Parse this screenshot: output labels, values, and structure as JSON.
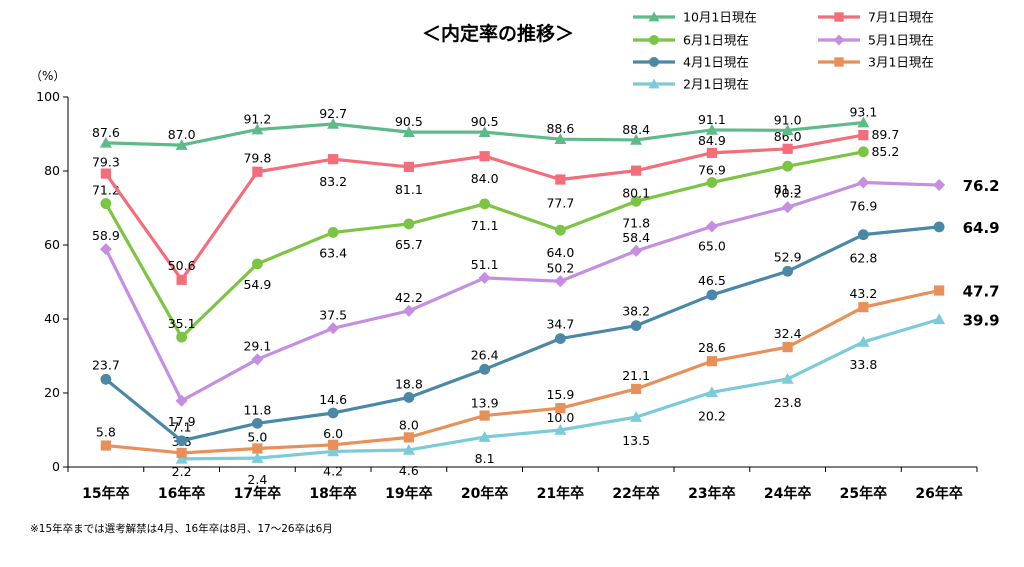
{
  "chart_data": {
    "type": "line",
    "title": "＜内定率の推移＞",
    "ylabel": "（%）",
    "ylim": [
      0,
      100
    ],
    "yticks": [
      0,
      20,
      40,
      60,
      80,
      100
    ],
    "categories": [
      "15年卒",
      "16年卒",
      "17年卒",
      "18年卒",
      "19年卒",
      "20年卒",
      "21年卒",
      "22年卒",
      "23年卒",
      "24年卒",
      "25年卒",
      "26年卒"
    ],
    "grid": false,
    "legend_position": "top-right",
    "footnote": "※15年卒までは選考解禁は4月、16年卒は8月、17〜26卒は6月",
    "series": [
      {
        "name": "10月1日現在",
        "color": "#5fba8a",
        "marker": "triangle",
        "values": [
          87.6,
          87.0,
          91.2,
          92.7,
          90.5,
          90.5,
          88.6,
          88.4,
          91.1,
          91.0,
          93.1,
          null
        ],
        "labels": [
          "87.6",
          "87.0",
          "91.2",
          "92.7",
          "90.5",
          "90.5",
          "88.6",
          "88.4",
          "91.1",
          "91.0",
          "93.1",
          ""
        ]
      },
      {
        "name": "7月1日現在",
        "color": "#f36d7a",
        "marker": "square",
        "values": [
          79.3,
          50.6,
          79.8,
          83.2,
          81.1,
          84.0,
          77.7,
          80.1,
          84.9,
          86.0,
          89.7,
          null
        ],
        "labels": [
          "79.3",
          "50.6",
          "79.8",
          "83.2",
          "81.1",
          "84.0",
          "77.7",
          "80.1",
          "84.9",
          "86.0",
          "89.7",
          ""
        ]
      },
      {
        "name": "6月1日現在",
        "color": "#7cc444",
        "marker": "circle",
        "values": [
          71.2,
          35.1,
          54.9,
          63.4,
          65.7,
          71.1,
          64.0,
          71.8,
          76.9,
          81.3,
          85.2,
          null
        ],
        "labels": [
          "71.2",
          "35.1",
          "54.9",
          "63.4",
          "65.7",
          "71.1",
          "64.0",
          "71.8",
          "76.9",
          "81.3",
          "85.2",
          ""
        ]
      },
      {
        "name": "5月1日現在",
        "color": "#c58ee0",
        "marker": "diamond",
        "values": [
          58.9,
          17.9,
          29.1,
          37.5,
          42.2,
          51.1,
          50.2,
          58.4,
          65.0,
          70.2,
          76.9,
          76.2
        ],
        "labels": [
          "58.9",
          "17.9",
          "29.1",
          "37.5",
          "42.2",
          "51.1",
          "50.2",
          "58.4",
          "65.0",
          "70.2",
          "76.9",
          "76.2"
        ]
      },
      {
        "name": "4月1日現在",
        "color": "#4a88a6",
        "marker": "circle",
        "values": [
          23.7,
          7.1,
          11.8,
          14.6,
          18.8,
          26.4,
          34.7,
          38.2,
          46.5,
          52.9,
          62.8,
          64.9
        ],
        "labels": [
          "23.7",
          "7.1",
          "11.8",
          "14.6",
          "18.8",
          "26.4",
          "34.7",
          "38.2",
          "46.5",
          "52.9",
          "62.8",
          "64.9"
        ]
      },
      {
        "name": "3月1日現在",
        "color": "#e8905a",
        "marker": "square",
        "values": [
          5.8,
          3.8,
          5.0,
          6.0,
          8.0,
          13.9,
          15.9,
          21.1,
          28.6,
          32.4,
          43.2,
          47.7
        ],
        "labels": [
          "5.8",
          "3.8",
          "5.0",
          "6.0",
          "8.0",
          "13.9",
          "15.9",
          "21.1",
          "28.6",
          "32.4",
          "43.2",
          "47.7"
        ]
      },
      {
        "name": "2月1日現在",
        "color": "#7ccbd8",
        "marker": "triangle",
        "values": [
          null,
          2.2,
          2.4,
          4.2,
          4.6,
          8.1,
          10.0,
          13.5,
          20.2,
          23.8,
          33.8,
          39.9
        ],
        "labels": [
          "",
          "2.2",
          "2.4",
          "4.2",
          "4.6",
          "8.1",
          "10.0",
          "13.5",
          "20.2",
          "23.8",
          "33.8",
          "39.9"
        ]
      }
    ]
  }
}
